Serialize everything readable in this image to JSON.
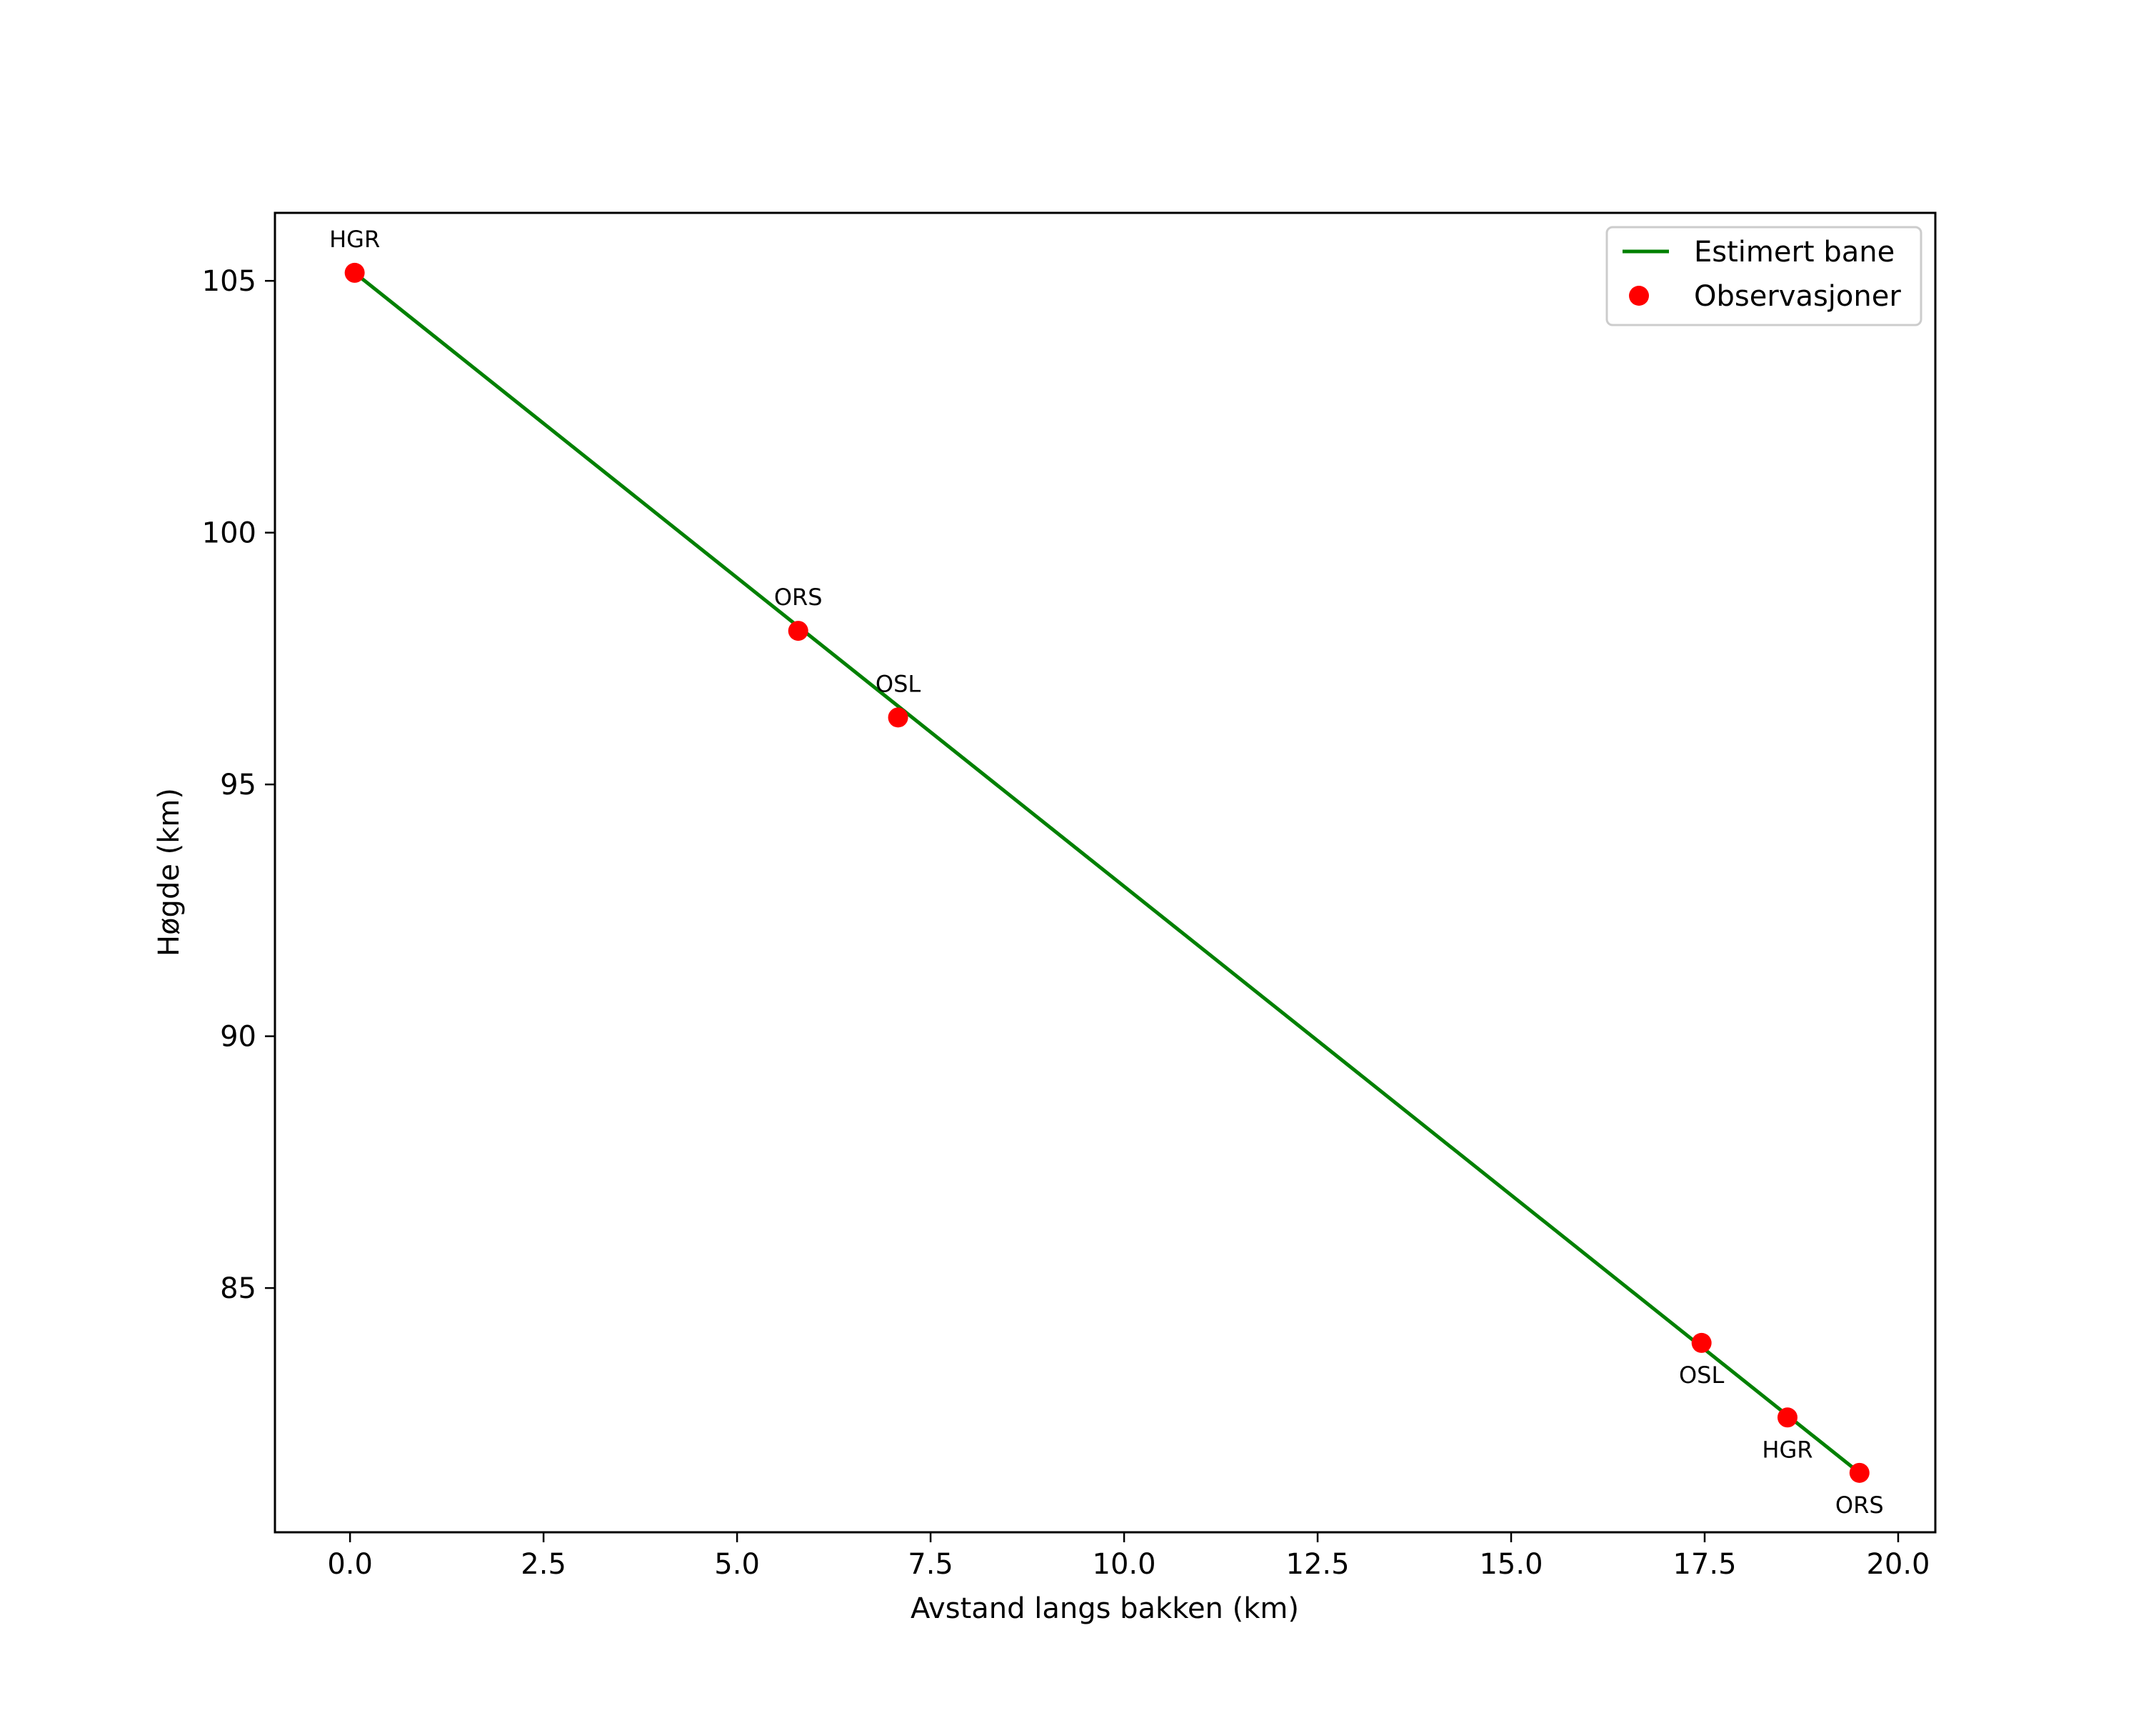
{
  "chart_data": {
    "type": "line",
    "title": "",
    "xlabel": "Avstand langs bakken (km)",
    "ylabel": "Høgde (km)",
    "xlim": [
      -0.97,
      20.48
    ],
    "ylim": [
      80.15,
      106.35
    ],
    "grid": false,
    "legend_position": "upper right",
    "xticks": [
      0.0,
      2.5,
      5.0,
      7.5,
      10.0,
      12.5,
      15.0,
      17.5,
      20.0
    ],
    "xtick_labels": [
      "0.0",
      "2.5",
      "5.0",
      "7.5",
      "10.0",
      "12.5",
      "15.0",
      "17.5",
      "20.0"
    ],
    "yticks": [
      85,
      90,
      95,
      100,
      105
    ],
    "ytick_labels": [
      "85",
      "90",
      "95",
      "100",
      "105"
    ],
    "series": [
      {
        "name": "Estimert bane",
        "type": "line",
        "color": "#008000",
        "x": [
          0.06,
          19.5
        ],
        "y": [
          105.16,
          81.33
        ]
      },
      {
        "name": "Observasjoner",
        "type": "scatter",
        "color": "#ff0000",
        "points": [
          {
            "label": "HGR",
            "x": 0.06,
            "y": 105.16,
            "label_pos": "above"
          },
          {
            "label": "ORS",
            "x": 5.79,
            "y": 98.05,
            "label_pos": "above"
          },
          {
            "label": "OSL",
            "x": 7.08,
            "y": 96.33,
            "label_pos": "above"
          },
          {
            "label": "OSL",
            "x": 17.46,
            "y": 83.91,
            "label_pos": "below"
          },
          {
            "label": "HGR",
            "x": 18.57,
            "y": 82.43,
            "label_pos": "below"
          },
          {
            "label": "ORS",
            "x": 19.5,
            "y": 81.33,
            "label_pos": "below"
          }
        ]
      }
    ]
  },
  "legend": {
    "items": [
      {
        "label": "Estimert bane",
        "marker": "line",
        "color": "#008000"
      },
      {
        "label": "Observasjoner",
        "marker": "circle",
        "color": "#ff0000"
      }
    ]
  }
}
